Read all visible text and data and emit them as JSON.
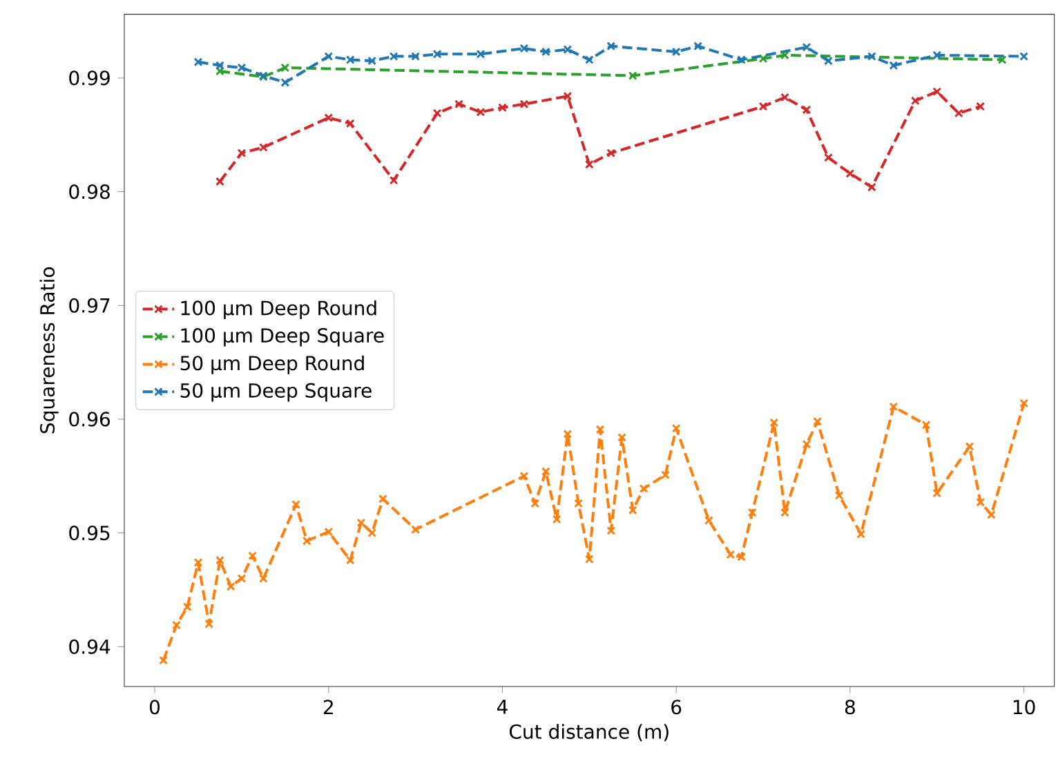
{
  "chart_data": {
    "type": "line",
    "xlabel": "Cut distance (m)",
    "ylabel": "Squareness Ratio",
    "xlim": [
      -0.35,
      10.35
    ],
    "ylim": [
      0.9365,
      0.9956
    ],
    "xticks": [
      0,
      2,
      4,
      6,
      8,
      10
    ],
    "yticks": [
      0.94,
      0.95,
      0.96,
      0.97,
      0.98,
      0.99
    ],
    "legend": "center left",
    "marker": "cross",
    "line_style": "dashed",
    "grid": false,
    "series": [
      {
        "name": "100 µm Deep Round",
        "color": "#d62728",
        "x": [
          0.75,
          1.0,
          1.25,
          2.0,
          2.25,
          2.75,
          3.25,
          3.5,
          3.75,
          4.0,
          4.25,
          4.75,
          5.0,
          5.25,
          7.0,
          7.25,
          7.5,
          7.75,
          8.0,
          8.25,
          8.75,
          9.0,
          9.25,
          9.5
        ],
        "values": [
          0.9809,
          0.9834,
          0.9839,
          0.9865,
          0.986,
          0.981,
          0.9869,
          0.9877,
          0.987,
          0.9874,
          0.9877,
          0.9884,
          0.9824,
          0.9834,
          0.9875,
          0.9883,
          0.9872,
          0.983,
          0.9816,
          0.9804,
          0.988,
          0.9888,
          0.9869,
          0.9875
        ]
      },
      {
        "name": "100 µm Deep Square",
        "color": "#2ca02c",
        "x": [
          0.75,
          1.25,
          1.5,
          5.5,
          7.0,
          7.25,
          9.75
        ],
        "values": [
          0.9906,
          0.9901,
          0.9909,
          0.9902,
          0.9917,
          0.992,
          0.9916
        ]
      },
      {
        "name": "50 µm Deep Round",
        "color": "#ff7f0e",
        "x": [
          0.1,
          0.25,
          0.375,
          0.5,
          0.625,
          0.75,
          0.875,
          1.0,
          1.125,
          1.25,
          1.625,
          1.75,
          2.0,
          2.25,
          2.375,
          2.5,
          2.625,
          3.0,
          4.25,
          4.375,
          4.5,
          4.625,
          4.75,
          4.875,
          5.0,
          5.125,
          5.25,
          5.375,
          5.5,
          5.625,
          5.875,
          6.0,
          6.375,
          6.625,
          6.75,
          6.875,
          7.125,
          7.25,
          7.5,
          7.625,
          7.875,
          8.125,
          8.5,
          8.875,
          9.0,
          9.375,
          9.5,
          9.625,
          10.0
        ],
        "values": [
          0.9388,
          0.9419,
          0.9435,
          0.9474,
          0.942,
          0.9476,
          0.9453,
          0.946,
          0.948,
          0.946,
          0.9525,
          0.9493,
          0.9501,
          0.9476,
          0.9509,
          0.95,
          0.953,
          0.9503,
          0.955,
          0.9526,
          0.9554,
          0.9512,
          0.9587,
          0.9526,
          0.9477,
          0.9591,
          0.9502,
          0.9584,
          0.952,
          0.9539,
          0.9551,
          0.9592,
          0.9511,
          0.9481,
          0.9479,
          0.9518,
          0.9597,
          0.9518,
          0.9578,
          0.9598,
          0.9533,
          0.9499,
          0.9611,
          0.9595,
          0.9535,
          0.9576,
          0.9527,
          0.9516,
          0.9614
        ]
      },
      {
        "name": "50 µm Deep Square",
        "color": "#1f77b4",
        "x": [
          0.5,
          0.75,
          1.0,
          1.25,
          1.5,
          2.0,
          2.25,
          2.5,
          2.75,
          3.0,
          3.25,
          3.75,
          4.25,
          4.5,
          4.75,
          5.0,
          5.25,
          6.0,
          6.25,
          6.75,
          7.5,
          7.75,
          8.25,
          8.5,
          9.0,
          10.0
        ],
        "values": [
          0.9914,
          0.9911,
          0.9909,
          0.9902,
          0.9896,
          0.9919,
          0.9916,
          0.9915,
          0.9919,
          0.9919,
          0.9921,
          0.9921,
          0.9926,
          0.9923,
          0.9925,
          0.9916,
          0.9928,
          0.9923,
          0.9928,
          0.9916,
          0.9927,
          0.9915,
          0.9919,
          0.9911,
          0.992,
          0.9919
        ]
      }
    ]
  }
}
